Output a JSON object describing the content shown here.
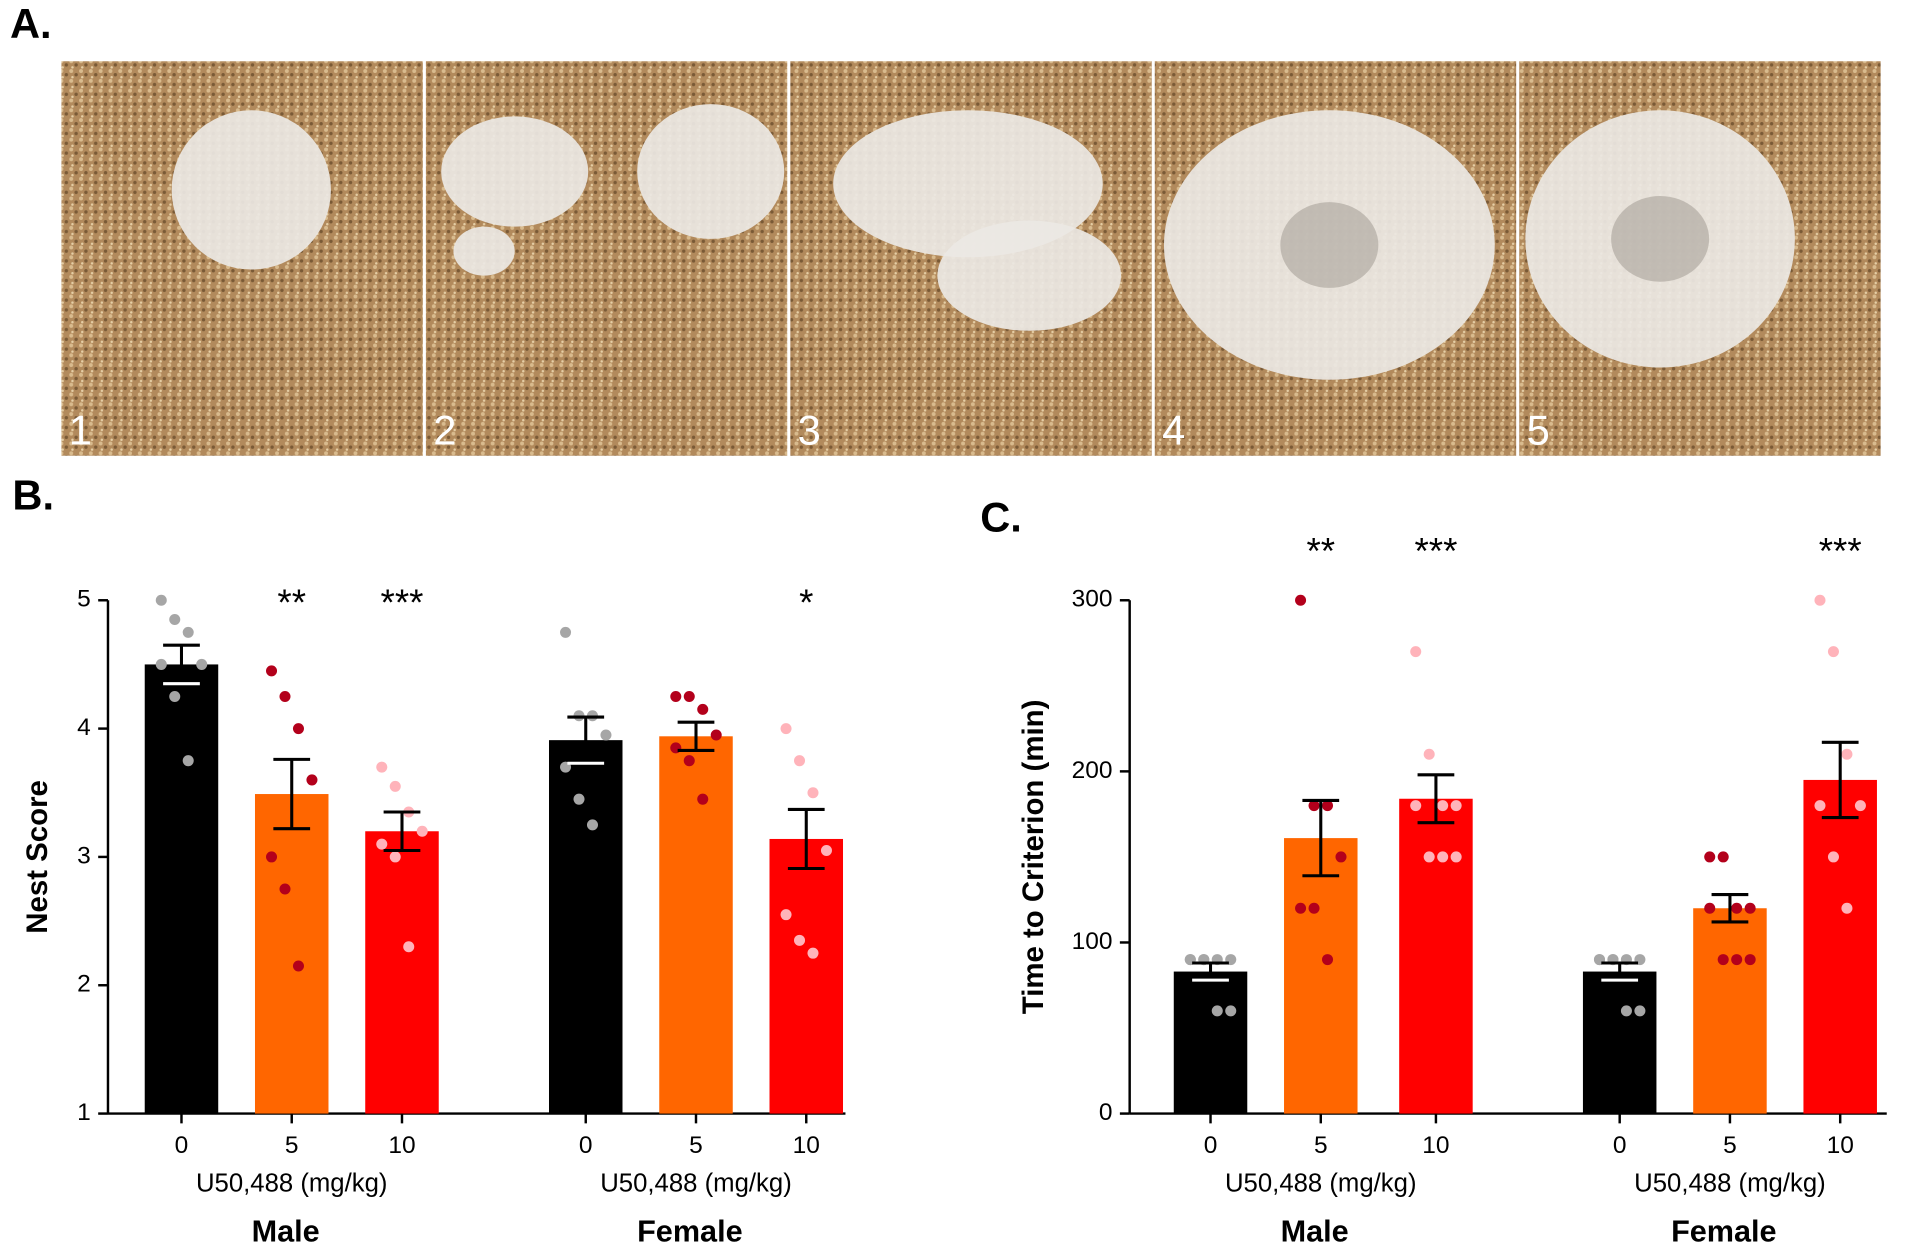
{
  "photo_panel": {
    "label": "A.",
    "photo_numbers": [
      "1",
      "2",
      "3",
      "4",
      "5"
    ]
  },
  "chart_data": [
    {
      "type": "bar",
      "panel_label": "B.",
      "y_label": "Nest Score",
      "x_axis_label": "U50,488 (mg/kg)",
      "groups": [
        "Male",
        "Female"
      ],
      "categories": [
        "0",
        "5",
        "10",
        "0",
        "5",
        "10"
      ],
      "values": [
        4.5,
        3.49,
        3.2,
        3.91,
        3.94,
        3.14
      ],
      "errors": [
        0.15,
        0.27,
        0.15,
        0.18,
        0.11,
        0.23
      ],
      "annotations": [
        "",
        "**",
        "***",
        null,
        null,
        "*"
      ],
      "colors": [
        "#000000",
        "#ff6600",
        "#ff0000",
        "#000000",
        "#ff6600",
        "#ff0000"
      ],
      "point_colors": [
        "#a6a6a6",
        "#b3001b",
        "#ffb3ba",
        "#a6a6a6",
        "#b3001b",
        "#ffb3ba"
      ],
      "points": [
        [
          5.0,
          4.85,
          4.75,
          4.5,
          4.5,
          4.25,
          3.75
        ],
        [
          4.45,
          4.25,
          4.0,
          3.6,
          3.0,
          2.75,
          2.15
        ],
        [
          3.7,
          3.55,
          3.35,
          3.2,
          3.1,
          3.0,
          2.3
        ],
        [
          4.75,
          4.1,
          4.1,
          3.95,
          3.7,
          3.45,
          3.25
        ],
        [
          4.25,
          4.25,
          4.15,
          3.95,
          3.85,
          3.75,
          3.45
        ],
        [
          4.0,
          3.75,
          3.5,
          3.05,
          2.55,
          2.35,
          2.25
        ]
      ],
      "ylim": [
        1,
        5
      ],
      "yticks": [
        1,
        2,
        3,
        4,
        5
      ]
    },
    {
      "type": "bar",
      "panel_label": "C.",
      "y_label": "Time to Criterion (min)",
      "x_axis_label": "U50,488 (mg/kg)",
      "groups": [
        "Male",
        "Female"
      ],
      "categories": [
        "0",
        "5",
        "10",
        "0",
        "5",
        "10"
      ],
      "values": [
        83,
        161,
        184,
        83,
        120,
        195
      ],
      "errors": [
        5,
        22,
        14,
        5,
        8,
        22
      ],
      "annotations": [
        null,
        "**",
        "***",
        null,
        null,
        "***"
      ],
      "colors": [
        "#000000",
        "#ff6600",
        "#ff0000",
        "#000000",
        "#ff6600",
        "#ff0000"
      ],
      "point_colors": [
        "#a6a6a6",
        "#b3001b",
        "#ffb3ba",
        "#a6a6a6",
        "#b3001b",
        "#ffb3ba"
      ],
      "points": [
        [
          90,
          90,
          90,
          90,
          90,
          90,
          60,
          60
        ],
        [
          300,
          180,
          180,
          150,
          120,
          120,
          90
        ],
        [
          270,
          210,
          180,
          180,
          180,
          150,
          150,
          150
        ],
        [
          90,
          90,
          90,
          90,
          90,
          90,
          60,
          60
        ],
        [
          150,
          150,
          120,
          120,
          120,
          90,
          90,
          90
        ],
        [
          300,
          270,
          210,
          180,
          180,
          150,
          120
        ]
      ],
      "ylim": [
        0,
        300
      ],
      "yticks": [
        0,
        100,
        200,
        300
      ]
    }
  ]
}
